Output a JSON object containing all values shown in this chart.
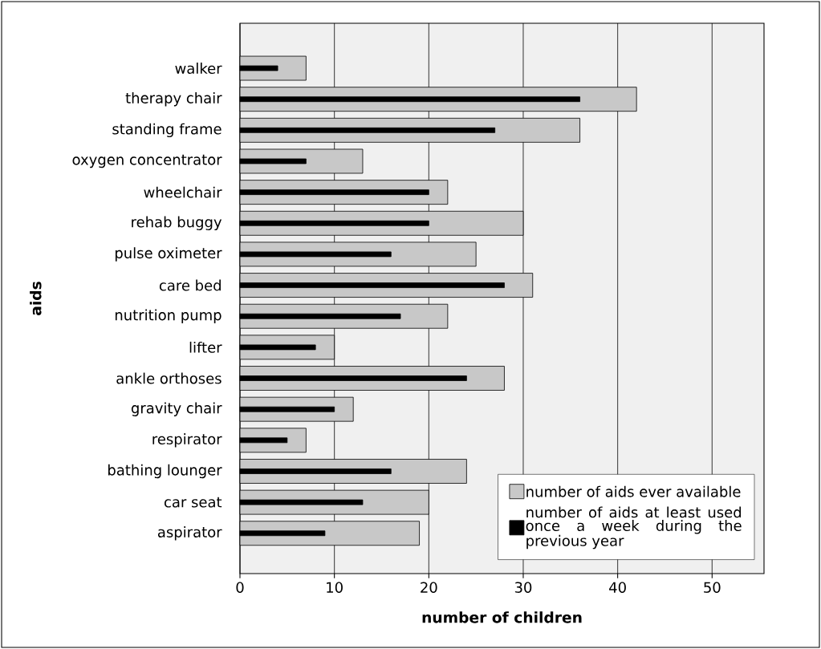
{
  "chart_data": {
    "type": "bar",
    "orientation": "horizontal",
    "xlabel": "number of children",
    "ylabel": "aids",
    "categories": [
      "walker",
      "therapy chair",
      "standing frame",
      "oxygen concentrator",
      "wheelchair",
      "rehab buggy",
      "pulse oximeter",
      "care bed",
      "nutrition pump",
      "lifter",
      "ankle orthoses",
      "gravity chair",
      "respirator",
      "bathing lounger",
      "car seat",
      "aspirator"
    ],
    "series": [
      {
        "name": "number of aids ever available",
        "color": "#c8c8c8",
        "values": [
          7,
          42,
          36,
          13,
          22,
          30,
          25,
          31,
          22,
          10,
          28,
          12,
          7,
          24,
          20,
          19
        ]
      },
      {
        "name": "number of aids at least used once a week during the previous year",
        "color": "#000000",
        "values": [
          4,
          36,
          27,
          7,
          20,
          20,
          16,
          28,
          17,
          8,
          24,
          10,
          5,
          16,
          13,
          9
        ]
      }
    ],
    "xlim": [
      0,
      55.5
    ],
    "xticks": [
      0,
      10,
      20,
      30,
      40,
      50
    ],
    "grid": "x",
    "legend": "bottom right"
  }
}
